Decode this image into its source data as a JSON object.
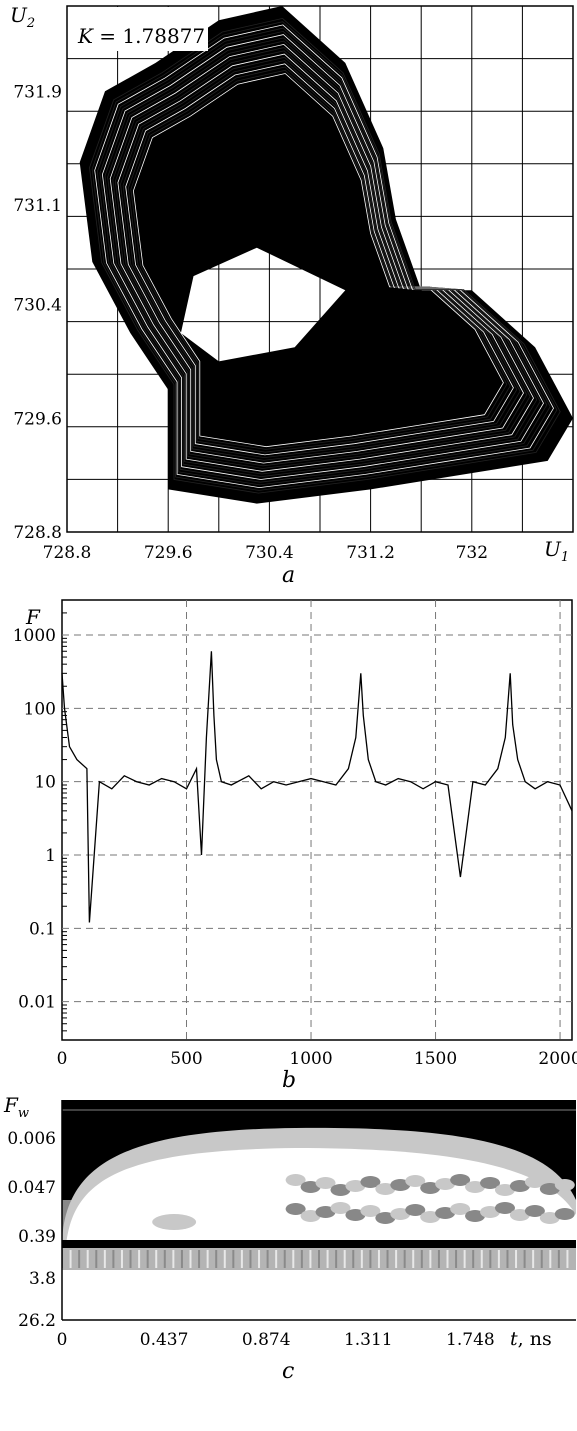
{
  "chart_data": [
    {
      "panel": "a",
      "type": "scatter",
      "title": "",
      "annotation": "K = 1.78877",
      "xlabel": "U1",
      "ylabel": "U2",
      "xlim": [
        728.8,
        732.8
      ],
      "ylim": [
        728.8,
        732.5
      ],
      "xticks": [
        "728.8",
        "729.6",
        "730.4",
        "731.2",
        "732"
      ],
      "yticks": [
        "728.8",
        "729.6",
        "730.4",
        "731.1",
        "731.9"
      ],
      "grid": true,
      "color": "#000000",
      "description_of_shape": "chaotic phase-plane attractor (dense black trajectory)",
      "series": [
        {
          "points": [
            [
              729.6,
              729.1
            ],
            [
              730.3,
              729.0
            ],
            [
              731.2,
              729.1
            ],
            [
              731.9,
              729.2
            ],
            [
              732.6,
              729.3
            ],
            [
              732.8,
              729.6
            ],
            [
              732.5,
              730.1
            ],
            [
              732.0,
              730.5
            ],
            [
              731.6,
              730.5
            ],
            [
              731.4,
              731.0
            ],
            [
              731.3,
              731.5
            ],
            [
              731.0,
              732.1
            ],
            [
              730.5,
              732.5
            ],
            [
              730.0,
              732.4
            ],
            [
              729.5,
              732.1
            ],
            [
              729.1,
              731.9
            ],
            [
              728.9,
              731.4
            ],
            [
              729.0,
              730.7
            ],
            [
              729.3,
              730.2
            ],
            [
              729.6,
              729.8
            ]
          ]
        }
      ]
    },
    {
      "panel": "b",
      "type": "line",
      "title": "",
      "xlabel": "",
      "ylabel": "F",
      "xlim": [
        0,
        2048
      ],
      "ylim": [
        0.003,
        3000
      ],
      "yscale": "log",
      "xticks": [
        "0",
        "500",
        "1000",
        "1500",
        "2000"
      ],
      "yticks": [
        "0.01",
        "0.1",
        "1",
        "10",
        "100",
        "1000"
      ],
      "grid": "dashed",
      "color": "#000000",
      "series": [
        {
          "x": [
            0,
            10,
            30,
            60,
            100,
            110,
            150,
            200,
            250,
            300,
            350,
            400,
            450,
            500,
            540,
            560,
            580,
            600,
            610,
            620,
            640,
            680,
            750,
            800,
            850,
            900,
            950,
            1000,
            1050,
            1100,
            1150,
            1180,
            1200,
            1210,
            1230,
            1260,
            1300,
            1350,
            1400,
            1450,
            1500,
            1550,
            1600,
            1650,
            1700,
            1750,
            1780,
            1800,
            1810,
            1830,
            1860,
            1900,
            1950,
            2000,
            2048
          ],
          "values": [
            300,
            100,
            30,
            20,
            15,
            0.12,
            10,
            8,
            12,
            10,
            9,
            11,
            10,
            8,
            15,
            1.0,
            40,
            600,
            80,
            20,
            10,
            9,
            12,
            8,
            10,
            9,
            10,
            11,
            10,
            9,
            15,
            40,
            300,
            80,
            20,
            10,
            9,
            11,
            10,
            8,
            10,
            9,
            0.5,
            10,
            9,
            15,
            40,
            300,
            60,
            20,
            10,
            8,
            10,
            9,
            4
          ]
        }
      ]
    },
    {
      "panel": "c",
      "type": "heatmap",
      "title": "",
      "xlabel": "t, ns",
      "ylabel": "Fw",
      "xlim": [
        0,
        2.2
      ],
      "xticks": [
        "0",
        "0.437",
        "0.874",
        "1.311",
        "1.748"
      ],
      "yticks": [
        "0.006",
        "0.047",
        "0.39",
        "3.8",
        "26.2"
      ],
      "colormap": [
        "#ffffff",
        "#c8c8c8",
        "#888888",
        "#000000"
      ],
      "description_of_shape": "wavelet spectrum: black background at high scales, white/grey dome at mid scales, banded grey at low scales"
    }
  ],
  "panels": {
    "a": {
      "letter": "a",
      "ylabel": "U",
      "ylabel_sub": "2",
      "xlabel": "U",
      "xlabel_sub": "1",
      "annotation_k": "K",
      "annotation_value": " = 1.78877"
    },
    "b": {
      "letter": "b",
      "ylabel": "F"
    },
    "c": {
      "letter": "c",
      "ylabel": "F",
      "ylabel_sub": "w",
      "xlabel_t": "t",
      "xlabel_unit": ", ns"
    }
  }
}
